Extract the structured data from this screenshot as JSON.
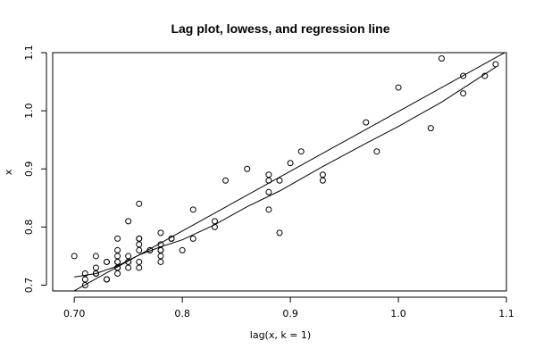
{
  "chart_data": {
    "type": "scatter",
    "title": "Lag plot, lowess, and regression line",
    "xlabel": "lag(x, k = 1)",
    "ylabel": "x",
    "xlim": [
      0.68,
      1.1
    ],
    "ylim": [
      0.69,
      1.1
    ],
    "xticks": [
      0.7,
      0.8,
      0.9,
      1.0,
      1.1
    ],
    "xtick_labels": [
      "0.70",
      "0.8",
      "0.9",
      "1.0",
      "1.1"
    ],
    "yticks": [
      0.7,
      0.8,
      0.9,
      1.0,
      1.1
    ],
    "ytick_labels": [
      "0.7",
      "0.8",
      "0.9",
      "1.0",
      "1.1"
    ],
    "grid": false,
    "points": [
      [
        0.7,
        0.75
      ],
      [
        0.71,
        0.72
      ],
      [
        0.71,
        0.71
      ],
      [
        0.71,
        0.7
      ],
      [
        0.72,
        0.75
      ],
      [
        0.72,
        0.73
      ],
      [
        0.72,
        0.72
      ],
      [
        0.72,
        0.72
      ],
      [
        0.73,
        0.74
      ],
      [
        0.73,
        0.74
      ],
      [
        0.73,
        0.71
      ],
      [
        0.73,
        0.71
      ],
      [
        0.74,
        0.78
      ],
      [
        0.74,
        0.76
      ],
      [
        0.74,
        0.75
      ],
      [
        0.74,
        0.74
      ],
      [
        0.74,
        0.74
      ],
      [
        0.74,
        0.73
      ],
      [
        0.74,
        0.73
      ],
      [
        0.74,
        0.72
      ],
      [
        0.75,
        0.81
      ],
      [
        0.75,
        0.75
      ],
      [
        0.75,
        0.74
      ],
      [
        0.75,
        0.74
      ],
      [
        0.75,
        0.73
      ],
      [
        0.76,
        0.84
      ],
      [
        0.76,
        0.78
      ],
      [
        0.76,
        0.78
      ],
      [
        0.76,
        0.77
      ],
      [
        0.76,
        0.76
      ],
      [
        0.76,
        0.74
      ],
      [
        0.76,
        0.73
      ],
      [
        0.77,
        0.76
      ],
      [
        0.77,
        0.76
      ],
      [
        0.78,
        0.79
      ],
      [
        0.78,
        0.77
      ],
      [
        0.78,
        0.76
      ],
      [
        0.78,
        0.76
      ],
      [
        0.78,
        0.75
      ],
      [
        0.78,
        0.74
      ],
      [
        0.79,
        0.78
      ],
      [
        0.79,
        0.78
      ],
      [
        0.8,
        0.76
      ],
      [
        0.81,
        0.83
      ],
      [
        0.81,
        0.78
      ],
      [
        0.83,
        0.81
      ],
      [
        0.83,
        0.8
      ],
      [
        0.84,
        0.88
      ],
      [
        0.86,
        0.9
      ],
      [
        0.88,
        0.89
      ],
      [
        0.88,
        0.88
      ],
      [
        0.88,
        0.86
      ],
      [
        0.88,
        0.83
      ],
      [
        0.89,
        0.88
      ],
      [
        0.89,
        0.79
      ],
      [
        0.9,
        0.91
      ],
      [
        0.91,
        0.93
      ],
      [
        0.93,
        0.89
      ],
      [
        0.93,
        0.88
      ],
      [
        0.97,
        0.98
      ],
      [
        0.98,
        0.93
      ],
      [
        1.0,
        1.04
      ],
      [
        1.03,
        0.97
      ],
      [
        1.04,
        1.09
      ],
      [
        1.06,
        1.06
      ],
      [
        1.06,
        1.03
      ],
      [
        1.08,
        1.06
      ],
      [
        1.09,
        1.08
      ]
    ],
    "regression_line": {
      "intercept": -0.0295,
      "slope": 1.0283
    },
    "lowess_line": [
      [
        0.7,
        0.714
      ],
      [
        0.72,
        0.72
      ],
      [
        0.74,
        0.733
      ],
      [
        0.76,
        0.752
      ],
      [
        0.78,
        0.766
      ],
      [
        0.8,
        0.778
      ],
      [
        0.83,
        0.804
      ],
      [
        0.86,
        0.835
      ],
      [
        0.89,
        0.862
      ],
      [
        0.93,
        0.904
      ],
      [
        0.97,
        0.944
      ],
      [
        1.0,
        0.973
      ],
      [
        1.04,
        1.015
      ],
      [
        1.09,
        1.075
      ]
    ]
  }
}
